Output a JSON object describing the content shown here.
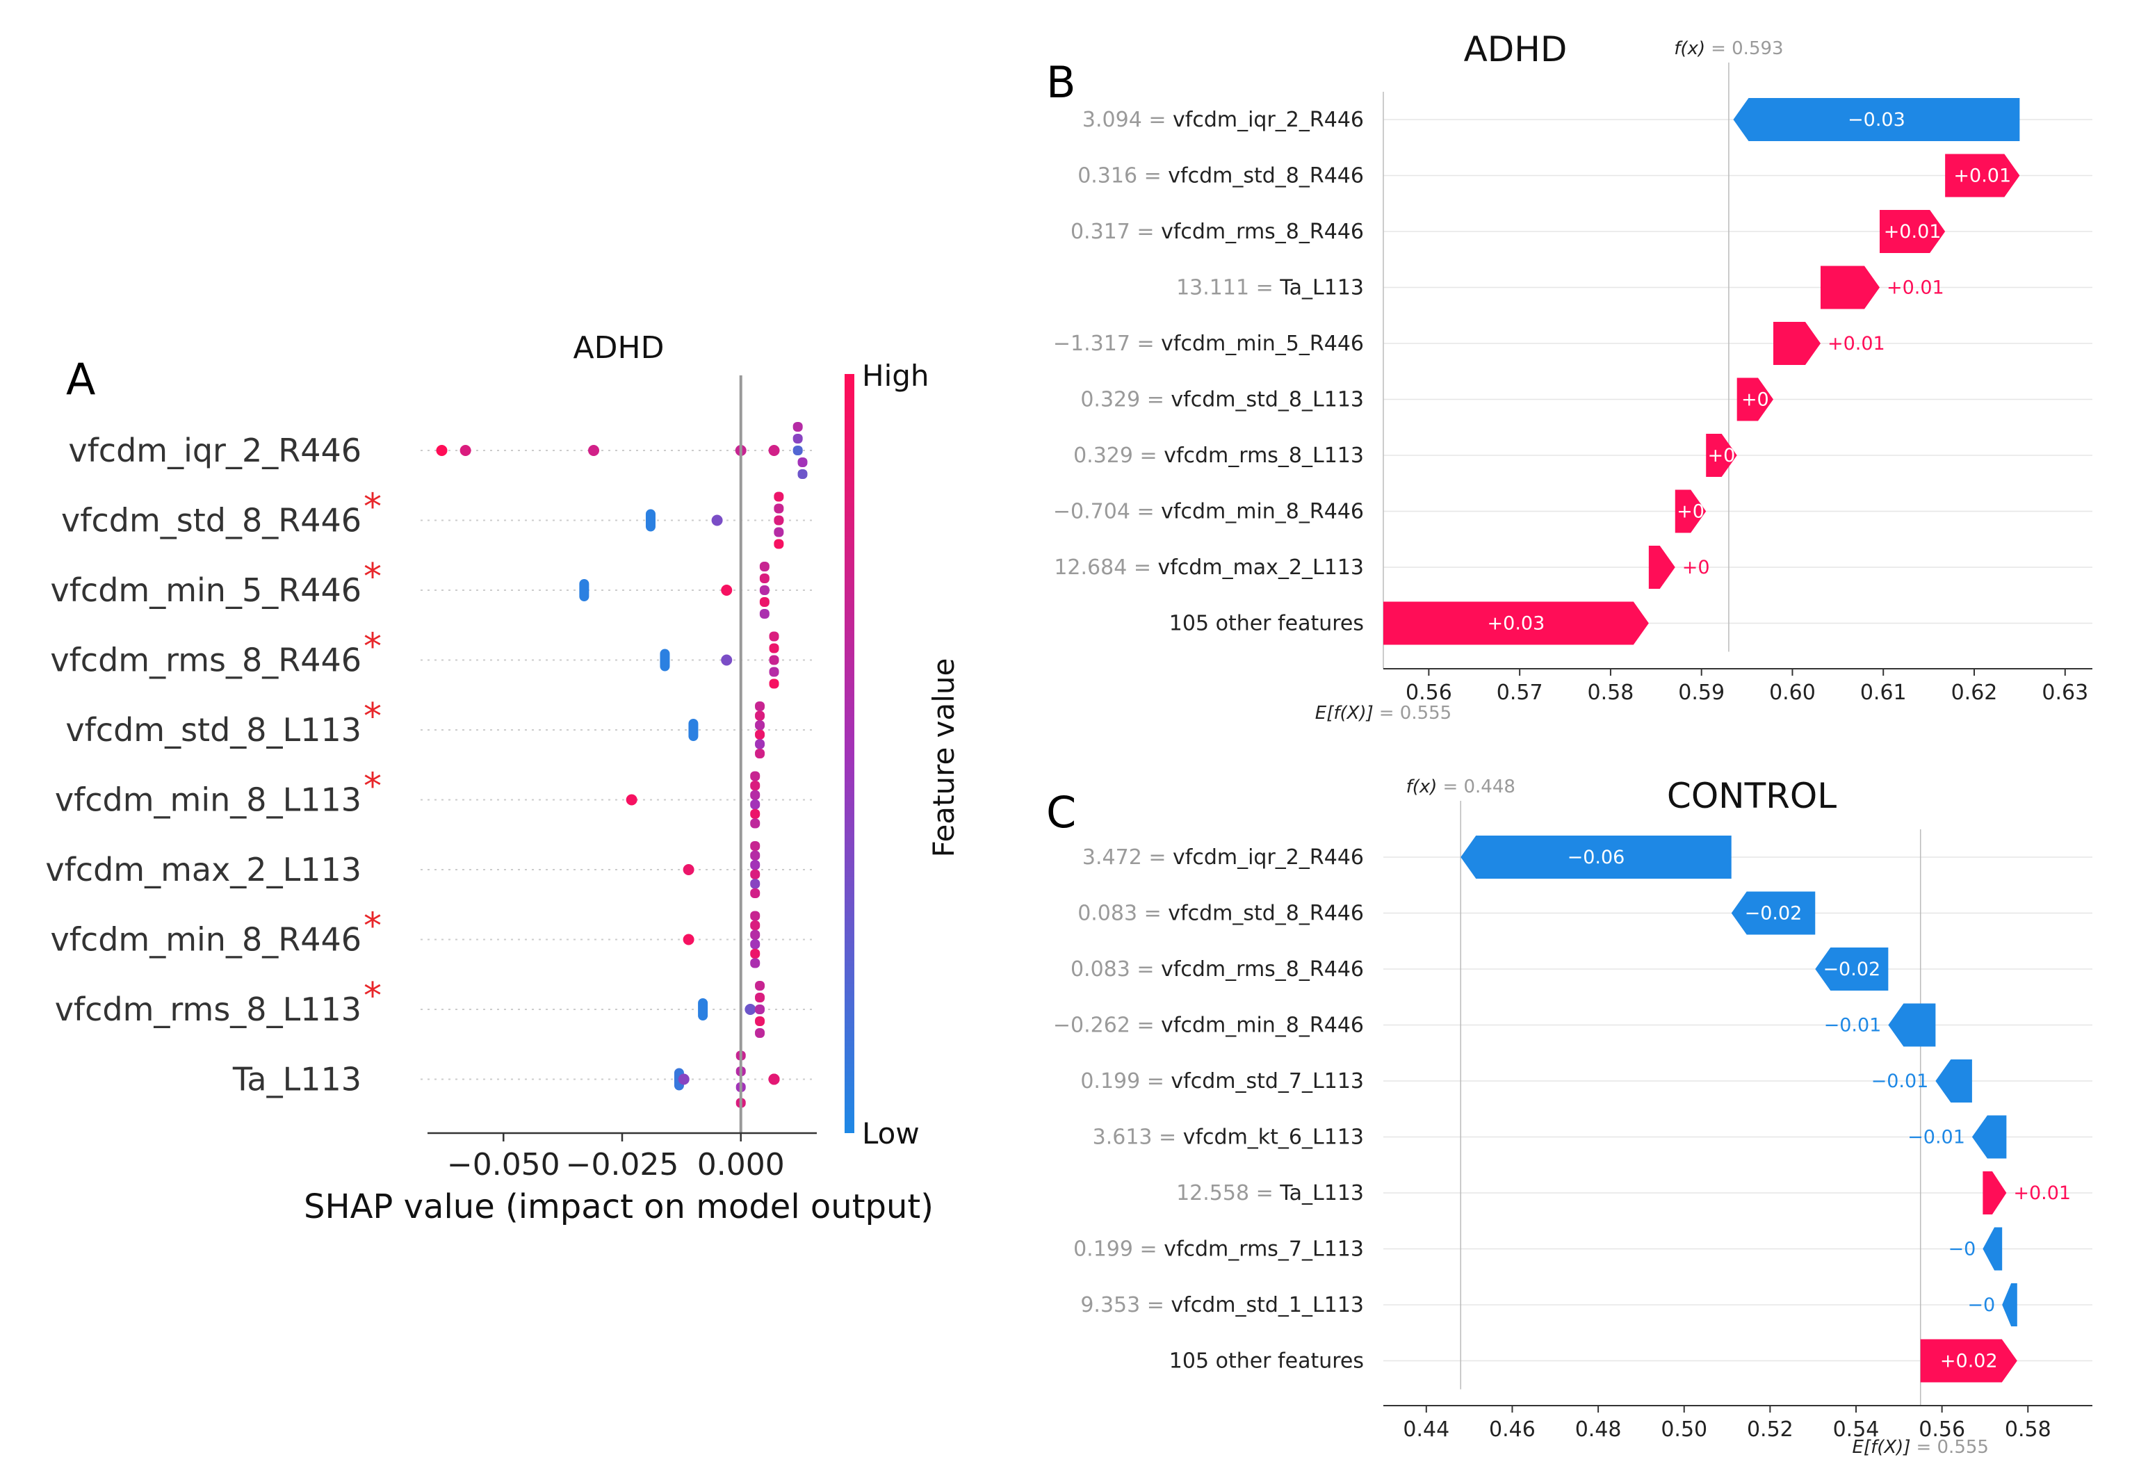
{
  "page": {
    "background": "#ffffff"
  },
  "colors": {
    "positive": "#ff0d57",
    "negative": "#1e88e5",
    "star": "#e8262a",
    "axis": "#999999"
  },
  "panels": {
    "a": "A",
    "b": "B",
    "c": "C"
  },
  "chart_data": [
    {
      "id": "panelA",
      "type": "scatter",
      "subtype": "shap-beeswarm",
      "title": "ADHD",
      "xlabel": "SHAP value (impact on model output)",
      "xlim": [
        -0.066,
        0.016
      ],
      "xticks": [
        -0.05,
        -0.025,
        0.0
      ],
      "xtick_labels": [
        "−0.050",
        "−0.025",
        "0.000"
      ],
      "colorbar": {
        "label": "Feature value",
        "high": "High",
        "low": "Low"
      },
      "star_glyph": "*",
      "features": [
        {
          "name": "vfcdm_iqr_2_R446",
          "starred": false,
          "points": [
            [
              -0.063,
              1.0
            ],
            [
              -0.058,
              0.8
            ],
            [
              -0.031,
              0.75
            ],
            [
              0.0,
              0.7
            ],
            [
              0.007,
              0.75
            ],
            [
              0.012,
              0.6
            ],
            [
              0.012,
              0.4
            ],
            [
              0.012,
              0.2
            ],
            [
              0.013,
              0.5
            ],
            [
              0.013,
              0.3
            ]
          ]
        },
        {
          "name": "vfcdm_std_8_R446",
          "starred": true,
          "points": [
            [
              -0.019,
              0.05
            ],
            [
              -0.005,
              0.35
            ],
            [
              0.008,
              0.9
            ],
            [
              0.008,
              0.7
            ],
            [
              0.008,
              0.8
            ],
            [
              0.008,
              0.6
            ],
            [
              0.008,
              0.95
            ]
          ]
        },
        {
          "name": "vfcdm_min_5_R446",
          "starred": true,
          "points": [
            [
              -0.033,
              0.05
            ],
            [
              -0.003,
              0.95
            ],
            [
              0.005,
              0.7
            ],
            [
              0.005,
              0.8
            ],
            [
              0.005,
              0.6
            ],
            [
              0.005,
              0.9
            ],
            [
              0.005,
              0.55
            ]
          ]
        },
        {
          "name": "vfcdm_rms_8_R446",
          "starred": true,
          "points": [
            [
              -0.016,
              0.05
            ],
            [
              -0.003,
              0.35
            ],
            [
              0.007,
              0.8
            ],
            [
              0.007,
              0.9
            ],
            [
              0.007,
              0.7
            ],
            [
              0.007,
              0.6
            ],
            [
              0.007,
              0.95
            ]
          ]
        },
        {
          "name": "vfcdm_std_8_L113",
          "starred": true,
          "points": [
            [
              -0.01,
              0.05
            ],
            [
              0.004,
              0.7
            ],
            [
              0.004,
              0.8
            ],
            [
              0.004,
              0.6
            ],
            [
              0.004,
              0.9
            ],
            [
              0.004,
              0.5
            ],
            [
              0.004,
              0.75
            ]
          ]
        },
        {
          "name": "vfcdm_min_8_L113",
          "starred": true,
          "points": [
            [
              -0.023,
              0.95
            ],
            [
              0.003,
              0.7
            ],
            [
              0.003,
              0.8
            ],
            [
              0.003,
              0.6
            ],
            [
              0.003,
              0.5
            ],
            [
              0.003,
              0.9
            ],
            [
              0.003,
              0.65
            ]
          ]
        },
        {
          "name": "vfcdm_max_2_L113",
          "starred": false,
          "points": [
            [
              -0.011,
              0.9
            ],
            [
              0.003,
              0.7
            ],
            [
              0.003,
              0.6
            ],
            [
              0.003,
              0.5
            ],
            [
              0.003,
              0.8
            ],
            [
              0.003,
              0.4
            ],
            [
              0.003,
              0.75
            ]
          ]
        },
        {
          "name": "vfcdm_min_8_R446",
          "starred": true,
          "points": [
            [
              -0.011,
              0.95
            ],
            [
              0.003,
              0.7
            ],
            [
              0.003,
              0.8
            ],
            [
              0.003,
              0.6
            ],
            [
              0.003,
              0.5
            ],
            [
              0.003,
              0.9
            ],
            [
              0.003,
              0.55
            ]
          ]
        },
        {
          "name": "vfcdm_rms_8_L113",
          "starred": true,
          "points": [
            [
              -0.008,
              0.05
            ],
            [
              0.002,
              0.3
            ],
            [
              0.004,
              0.7
            ],
            [
              0.004,
              0.8
            ],
            [
              0.004,
              0.6
            ],
            [
              0.004,
              0.9
            ],
            [
              0.004,
              0.65
            ]
          ]
        },
        {
          "name": "Ta_L113",
          "starred": false,
          "points": [
            [
              -0.013,
              0.1
            ],
            [
              -0.012,
              0.4
            ],
            [
              0.0,
              0.7
            ],
            [
              0.0,
              0.6
            ],
            [
              0.0,
              0.5
            ],
            [
              0.0,
              0.8
            ],
            [
              0.007,
              0.95
            ],
            [
              0.007,
              0.9
            ],
            [
              0.007,
              0.85
            ]
          ]
        }
      ]
    },
    {
      "id": "panelB",
      "type": "bar",
      "subtype": "shap-waterfall",
      "title": "ADHD",
      "fx_symbol": "f(x)",
      "fx_value_label": "= 0.593",
      "ef_symbol": "E[f(X)]",
      "ef_value_label": "= 0.555",
      "base_value": 0.555,
      "output_value": 0.593,
      "xlim": [
        0.555,
        0.633
      ],
      "xticks": [
        0.56,
        0.57,
        0.58,
        0.59,
        0.6,
        0.61,
        0.62,
        0.63
      ],
      "xtick_labels": [
        "0.56",
        "0.57",
        "0.58",
        "0.59",
        "0.60",
        "0.61",
        "0.62",
        "0.63"
      ],
      "rows": [
        {
          "value_label": "3.094 =",
          "feature": "vfcdm_iqr_2_R446",
          "start": 0.625,
          "end": 0.5935,
          "label": "−0.03",
          "label_inside": true
        },
        {
          "value_label": "0.316 =",
          "feature": "vfcdm_std_8_R446",
          "start": 0.6168,
          "end": 0.625,
          "label": "+0.01",
          "label_inside": true
        },
        {
          "value_label": "0.317 =",
          "feature": "vfcdm_rms_8_R446",
          "start": 0.6096,
          "end": 0.6168,
          "label": "+0.01",
          "label_inside": true
        },
        {
          "value_label": "13.111 =",
          "feature": "Ta_L113",
          "start": 0.6031,
          "end": 0.6096,
          "label": "+0.01",
          "label_inside": false
        },
        {
          "value_label": "−1.317 =",
          "feature": "vfcdm_min_5_R446",
          "start": 0.5979,
          "end": 0.6031,
          "label": "+0.01",
          "label_inside": false
        },
        {
          "value_label": "0.329 =",
          "feature": "vfcdm_std_8_L113",
          "start": 0.5939,
          "end": 0.5979,
          "label": "+0",
          "label_inside": true
        },
        {
          "value_label": "0.329 =",
          "feature": "vfcdm_rms_8_L113",
          "start": 0.5905,
          "end": 0.5939,
          "label": "+0",
          "label_inside": true
        },
        {
          "value_label": "−0.704 =",
          "feature": "vfcdm_min_8_R446",
          "start": 0.5871,
          "end": 0.5905,
          "label": "+0",
          "label_inside": true
        },
        {
          "value_label": "12.684 =",
          "feature": "vfcdm_max_2_L113",
          "start": 0.5842,
          "end": 0.5871,
          "label": "+0",
          "label_inside": false
        },
        {
          "value_label": "",
          "feature": "105 other features",
          "start": 0.555,
          "end": 0.5842,
          "label": "+0.03",
          "label_inside": true
        }
      ]
    },
    {
      "id": "panelC",
      "type": "bar",
      "subtype": "shap-waterfall",
      "title": "CONTROL",
      "fx_symbol": "f(x)",
      "fx_value_label": "= 0.448",
      "ef_symbol": "E[f(X)]",
      "ef_value_label": "= 0.555",
      "base_value": 0.555,
      "output_value": 0.448,
      "xlim": [
        0.43,
        0.595
      ],
      "xticks": [
        0.44,
        0.46,
        0.48,
        0.5,
        0.52,
        0.54,
        0.56,
        0.58
      ],
      "xtick_labels": [
        "0.44",
        "0.46",
        "0.48",
        "0.50",
        "0.52",
        "0.54",
        "0.56",
        "0.58"
      ],
      "rows": [
        {
          "value_label": "3.472 =",
          "feature": "vfcdm_iqr_2_R446",
          "start": 0.511,
          "end": 0.448,
          "label": "−0.06",
          "label_inside": true
        },
        {
          "value_label": "0.083 =",
          "feature": "vfcdm_std_8_R446",
          "start": 0.5305,
          "end": 0.511,
          "label": "−0.02",
          "label_inside": true
        },
        {
          "value_label": "0.083 =",
          "feature": "vfcdm_rms_8_R446",
          "start": 0.5475,
          "end": 0.5305,
          "label": "−0.02",
          "label_inside": true
        },
        {
          "value_label": "−0.262 =",
          "feature": "vfcdm_min_8_R446",
          "start": 0.5585,
          "end": 0.5475,
          "label": "−0.01",
          "label_inside": false
        },
        {
          "value_label": "0.199 =",
          "feature": "vfcdm_std_7_L113",
          "start": 0.567,
          "end": 0.5585,
          "label": "−0.01",
          "label_inside": false
        },
        {
          "value_label": "3.613 =",
          "feature": "vfcdm_kt_6_L113",
          "start": 0.575,
          "end": 0.567,
          "label": "−0.01",
          "label_inside": false
        },
        {
          "value_label": "12.558 =",
          "feature": "Ta_L113",
          "start": 0.5695,
          "end": 0.575,
          "label": "+0.01",
          "label_inside": false
        },
        {
          "value_label": "0.199 =",
          "feature": "vfcdm_rms_7_L113",
          "start": 0.574,
          "end": 0.5695,
          "label": "−0",
          "label_inside": false
        },
        {
          "value_label": "9.353 =",
          "feature": "vfcdm_std_1_L113",
          "start": 0.5775,
          "end": 0.574,
          "label": "−0",
          "label_inside": false
        },
        {
          "value_label": "",
          "feature": "105 other features",
          "start": 0.555,
          "end": 0.5775,
          "label": "+0.02",
          "label_inside": true
        }
      ]
    }
  ]
}
